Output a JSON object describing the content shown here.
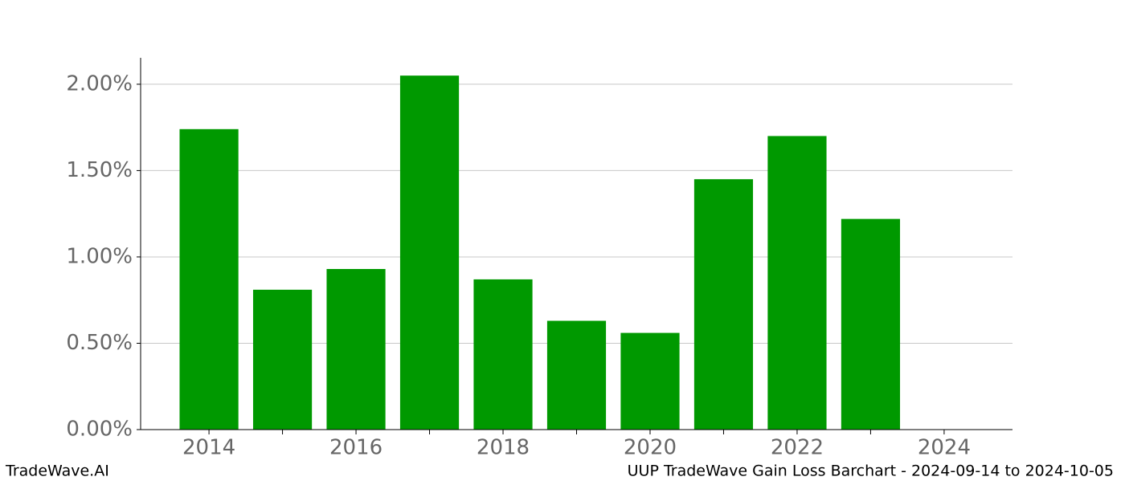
{
  "chart_data": {
    "type": "bar",
    "x": [
      2014,
      2015,
      2016,
      2017,
      2018,
      2019,
      2020,
      2021,
      2022,
      2023
    ],
    "values": [
      1.74,
      0.81,
      0.93,
      2.05,
      0.87,
      0.63,
      0.56,
      1.45,
      1.7,
      1.22
    ],
    "color": "#009900",
    "xlim": [
      2013.07,
      2024.93
    ],
    "xticks": [
      2014,
      2016,
      2018,
      2020,
      2022,
      2024
    ],
    "xminorticks": [
      2015,
      2017,
      2019,
      2021,
      2023
    ],
    "ylim": [
      0,
      2.153
    ],
    "yticks": [
      {
        "value": 0,
        "label": "0.00%"
      },
      {
        "value": 0.5,
        "label": "0.50%"
      },
      {
        "value": 1,
        "label": "1.00%"
      },
      {
        "value": 1.5,
        "label": "1.50%"
      },
      {
        "value": 2,
        "label": "2.00%"
      }
    ],
    "grid": true,
    "footer_left": "TradeWave.AI",
    "footer_right": "UUP TradeWave Gain Loss Barchart - 2024-09-14 to 2024-10-05"
  }
}
